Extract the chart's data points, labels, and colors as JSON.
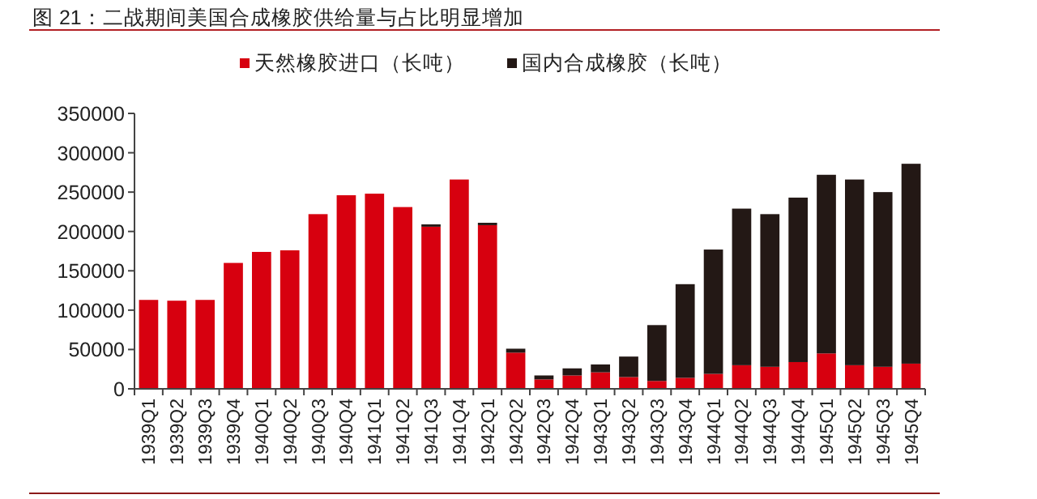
{
  "chart_data": {
    "type": "bar",
    "stacked": true,
    "title": "图 21：二战期间美国合成橡胶供给量与占比明显增加",
    "categories": [
      "1939Q1",
      "1939Q2",
      "1939Q3",
      "1939Q4",
      "1940Q1",
      "1940Q2",
      "1940Q3",
      "1940Q4",
      "1941Q1",
      "1941Q2",
      "1941Q3",
      "1941Q4",
      "1942Q1",
      "1942Q2",
      "1942Q3",
      "1942Q4",
      "1943Q1",
      "1943Q2",
      "1943Q3",
      "1943Q4",
      "1944Q1",
      "1944Q2",
      "1944Q3",
      "1944Q4",
      "1945Q1",
      "1945Q2",
      "1945Q3",
      "1945Q4"
    ],
    "series": [
      {
        "name": "天然橡胶进口（长吨）",
        "color": "#d7000f",
        "values": [
          113000,
          112000,
          113000,
          160000,
          174000,
          176000,
          222000,
          246000,
          248000,
          231000,
          206000,
          266000,
          208000,
          46000,
          12000,
          17000,
          21000,
          15000,
          10000,
          14000,
          19000,
          30000,
          28000,
          34000,
          45000,
          30000,
          28000,
          32000
        ]
      },
      {
        "name": "国内合成橡胶（长吨）",
        "color": "#231815",
        "values": [
          0,
          0,
          0,
          0,
          0,
          0,
          0,
          0,
          0,
          0,
          3000,
          0,
          3000,
          5000,
          5000,
          9000,
          10000,
          26000,
          71000,
          119000,
          158000,
          199000,
          194000,
          209000,
          227000,
          236000,
          222000,
          254000
        ]
      }
    ],
    "ylim": [
      0,
      350000
    ],
    "yticks": [
      0,
      50000,
      100000,
      150000,
      200000,
      250000,
      300000,
      350000
    ],
    "grid": false,
    "legend": "top"
  }
}
